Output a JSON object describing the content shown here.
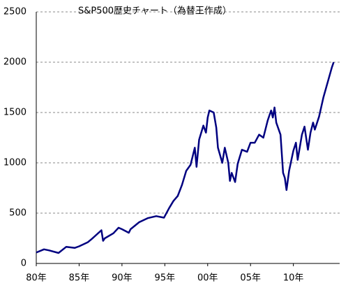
{
  "chart_data": {
    "type": "line",
    "title": "S&P500歴史チャート（為替王作成）",
    "x": [
      1980,
      1980.9,
      1981.5,
      1982.6,
      1983.5,
      1984.5,
      1985,
      1986,
      1986.5,
      1987.6,
      1987.8,
      1988,
      1989,
      1989.6,
      1990,
      1990.8,
      1991,
      1992,
      1993,
      1994,
      1994.9,
      1995,
      1995.5,
      1996,
      1996.5,
      1997,
      1997.5,
      1998,
      1998.5,
      1998.7,
      1999,
      1999.5,
      1999.8,
      2000,
      2000.2,
      2000.7,
      2001,
      2001.2,
      2001.7,
      2002,
      2002.4,
      2002.6,
      2002.8,
      2003.2,
      2003.5,
      2004,
      2004.6,
      2005,
      2005.5,
      2006,
      2006.5,
      2007,
      2007.4,
      2007.6,
      2007.8,
      2008,
      2008.5,
      2008.8,
      2009,
      2009.2,
      2009.5,
      2010,
      2010.3,
      2010.5,
      2011,
      2011.3,
      2011.7,
      2012,
      2012.3,
      2012.5,
      2013,
      2013.5,
      2014,
      2014.5,
      2014.7
    ],
    "series": [
      {
        "name": "S&P500",
        "color": "#000080",
        "values": [
          108,
          140,
          130,
          104,
          165,
          155,
          170,
          210,
          245,
          330,
          225,
          250,
          300,
          355,
          340,
          305,
          340,
          410,
          450,
          470,
          455,
          470,
          550,
          620,
          670,
          780,
          920,
          980,
          1150,
          960,
          1230,
          1370,
          1300,
          1450,
          1520,
          1500,
          1350,
          1150,
          1000,
          1150,
          1000,
          820,
          900,
          810,
          990,
          1130,
          1110,
          1200,
          1200,
          1280,
          1250,
          1420,
          1520,
          1450,
          1550,
          1400,
          1280,
          900,
          850,
          730,
          920,
          1120,
          1200,
          1030,
          1280,
          1360,
          1130,
          1300,
          1400,
          1330,
          1460,
          1650,
          1800,
          1950,
          2000
        ]
      }
    ],
    "xlim": [
      1980,
      2015.4
    ],
    "xticks": [
      {
        "value": 1980,
        "label": "80年"
      },
      {
        "value": 1985,
        "label": "85年"
      },
      {
        "value": 1990,
        "label": "90年"
      },
      {
        "value": 1995,
        "label": "95年"
      },
      {
        "value": 2000,
        "label": "00年"
      },
      {
        "value": 2005,
        "label": "05年"
      },
      {
        "value": 2010,
        "label": "10年"
      }
    ],
    "ylim": [
      0,
      2500
    ],
    "yticks": [
      0,
      500,
      1000,
      1500,
      2000,
      2500
    ],
    "grid": true
  }
}
